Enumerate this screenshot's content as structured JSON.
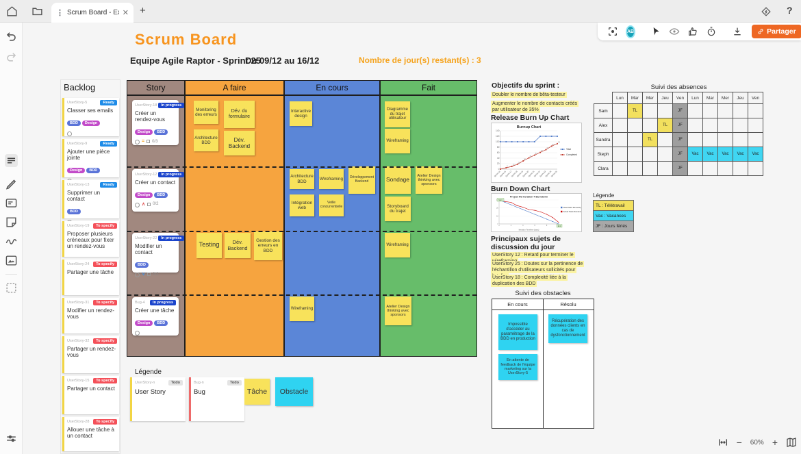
{
  "chrome": {
    "tab_title": "Scrum Board - Ex...",
    "zoom_level": "60%",
    "share_label": "Partager",
    "avatar_initials": "AB"
  },
  "board": {
    "title": "Scrum Board",
    "team": "Equipe Agile Raptor - Sprint 25",
    "dates": "Du 09/12 au 16/12",
    "days_remaining": "Nombre de jour(s) restant(s) : 3"
  },
  "backlog": {
    "title": "Backlog",
    "cards": [
      {
        "id": "UserStory-5",
        "status": "Ready",
        "title": "Classer ses emails",
        "tags": [
          "BDD",
          "Design"
        ]
      },
      {
        "id": "UserStory-9",
        "status": "Ready",
        "title": "Ajouter une pièce jointe",
        "tags": [
          "Design",
          "BDD"
        ]
      },
      {
        "id": "UserStory-13",
        "status": "Ready",
        "title": "Supprimer un contact",
        "tags": [
          "BDD"
        ]
      },
      {
        "id": "UserStory-19",
        "status": "To specify",
        "title": "Proposer plusieurs créneaux pour fixer un rendez-vous",
        "tags": []
      },
      {
        "id": "UserStory-24",
        "status": "To specify",
        "title": "Partager une tâche",
        "tags": []
      },
      {
        "id": "UserStory-31",
        "status": "To specify",
        "title": "Modifier un rendez-vous",
        "tags": []
      },
      {
        "id": "UserStory-32",
        "status": "To specify",
        "title": "Partager un rendez-vous",
        "tags": []
      },
      {
        "id": "UserStory-15",
        "status": "To specify",
        "title": "Partager un contact",
        "tags": []
      },
      {
        "id": "UserStory-28",
        "status": "To specify",
        "title": "Allouer une tâche à un contact",
        "tags": []
      }
    ]
  },
  "kanban": {
    "columns": [
      "Story",
      "A faire",
      "En cours",
      "Fait"
    ],
    "rows": [
      {
        "story": {
          "id": "UserStory-18",
          "status": "In progress",
          "title": "Créer un rendez-vous",
          "tags": [
            "Design",
            "BDD"
          ],
          "checklist": "0/3"
        },
        "a_faire": [
          "Monitoring des erreurs",
          "Dév. du formulaire",
          "Architecture BDD",
          "Dév. Backend"
        ],
        "en_cours": [
          "Interactive design"
        ],
        "fait": [
          "Diagramme du trajet utilisateur",
          "Wireframing"
        ]
      },
      {
        "story": {
          "id": "UserStory-12",
          "status": "In progress",
          "title": "Créer un contact",
          "tags": [
            "Design",
            "BDD"
          ],
          "checklist": "0/2"
        },
        "a_faire": [],
        "en_cours": [
          "Architecture BDD",
          "Wireframing",
          "Développement Backend",
          "Intégration web",
          "Veille concurrentielle"
        ],
        "fait": [
          "Sondage",
          "Atelier Design thinking avec sponsors",
          "Storyboard du trajet"
        ]
      },
      {
        "story": {
          "id": "UserStory-22",
          "status": "In progress",
          "title": "Modifier un contact",
          "tags": [
            "BDD"
          ],
          "checklist": "0/2"
        },
        "a_faire": [
          "Testing",
          "Dév. Backend",
          "Gestion des erreurs en BDD"
        ],
        "en_cours": [],
        "fait": [
          "Wireframing"
        ]
      },
      {
        "story": {
          "id": "Bug-4",
          "status": "In progress",
          "title": "Créer une tâche",
          "tags": [
            "Design",
            "BDD"
          ],
          "checklist": ""
        },
        "a_faire": [],
        "en_cours": [
          "Wireframing"
        ],
        "fait": [
          "Atelier Design thinking avec sponsors"
        ]
      }
    ]
  },
  "legend": {
    "title": "Légende",
    "user_story_card": {
      "id": "UserStory-n",
      "status": "Todo",
      "label": "User Story"
    },
    "bug_card": {
      "id": "Bug-n",
      "status": "Todo",
      "label": "Bug"
    },
    "task_label": "Tâche",
    "obstacle_label": "Obstacle"
  },
  "sprint_panel": {
    "objectives_title": "Objectifs du sprint :",
    "objectives": [
      "Doubler le nombre de bêta-testeur",
      "Augmenter le nombre de contacts créés par utilisateur de 35%"
    ],
    "burnup_title": "Release Burn Up Chart",
    "burndown_title": "Burn Down Chart",
    "topics_title": "Principaux sujets de discussion du jour",
    "topics": [
      "UserStory 12 : Retard pour terminer le wireframing",
      "UserStory 25 : Doutes sur la pertinence de l'échantillon d'utilisateurs sollicités pour l'atelier",
      "UserStory 18 : Complexité liée à la duplication des BDD"
    ]
  },
  "obstacles": {
    "title": "Suivi des obstacles",
    "columns": [
      "En cours",
      "Résolu"
    ],
    "en_cours": [
      "Impossible d'accéder au paramétrage de la BDD en production",
      "En attente de feedback de l'équipe marketing sur la UserStory-5"
    ],
    "resolu": [
      "Récupération des données clients en cas de dysfonctionnement"
    ]
  },
  "absences": {
    "title": "Suivi des absences",
    "days": [
      "Lun",
      "Mar",
      "Mer",
      "Jeu",
      "Ven",
      "Lun",
      "Mar",
      "Mer",
      "Jeu",
      "Ven"
    ],
    "people": [
      "Sam",
      "Alex",
      "Sandra",
      "Steph",
      "Clara"
    ],
    "grid": [
      [
        "",
        "TL",
        "",
        "",
        "JF",
        "",
        "",
        "",
        "",
        ""
      ],
      [
        "",
        "",
        "",
        "TL",
        "JF",
        "",
        "",
        "",
        "",
        ""
      ],
      [
        "",
        "",
        "TL",
        "",
        "JF",
        "",
        "",
        "",
        "",
        ""
      ],
      [
        "",
        "",
        "",
        "",
        "JF",
        "Vac",
        "Vac",
        "Vac",
        "Vac",
        "Vac"
      ],
      [
        "",
        "",
        "",
        "",
        "JF",
        "",
        "",
        "",
        "",
        ""
      ]
    ],
    "legend": {
      "title": "Légende",
      "items": [
        "TL : Télétravail",
        "Vac : Vacances",
        "JF : Jours fériés"
      ]
    }
  },
  "chart_data": [
    {
      "name": "release-burnup",
      "type": "line",
      "title": "Burnup Chart",
      "categories": [
        "Sprint 15",
        "Sprint 16",
        "Sprint 17",
        "Sprint 18",
        "Sprint 19",
        "Sprint 20",
        "Sprint 21",
        "Sprint 22",
        "Sprint 23",
        "Sprint 24",
        "Sprint 25"
      ],
      "series": [
        {
          "name": "Total",
          "color": "#4472c4",
          "values": [
            100,
            100,
            100,
            100,
            100,
            100,
            100,
            120,
            120,
            120,
            120
          ]
        },
        {
          "name": "Completed",
          "color": "#c0392b",
          "values": [
            0,
            5,
            10,
            18,
            30,
            41,
            51,
            61,
            71,
            84,
            93
          ]
        }
      ],
      "ylim": [
        0,
        140
      ],
      "ytick_step": 20,
      "legend_position": "right",
      "grid": true
    },
    {
      "name": "burndown",
      "type": "line",
      "title": "Project NG Iteration 4 Burndown",
      "xlabel": "Iteration Timeline (days)",
      "x": [
        0,
        1,
        2,
        3,
        4,
        5,
        6,
        7,
        8,
        9,
        10
      ],
      "series": [
        {
          "name": "Ideal Tasks Remaining",
          "color": "#4472c4",
          "values": [
            30,
            27,
            24,
            21,
            18,
            15,
            12,
            9,
            6,
            3,
            0
          ]
        },
        {
          "name": "Actual Tasks Remaining",
          "color": "#cc0000",
          "values": [
            30,
            28,
            27,
            23,
            21,
            18,
            17,
            15,
            12,
            8,
            2
          ]
        }
      ],
      "ylim": [
        0,
        30
      ],
      "annotations": [
        "Start",
        "End"
      ],
      "legend_position": "right",
      "grid": true
    }
  ],
  "colors": {
    "accent_orange": "#f7941e",
    "remaining_orange": "#f5a31d",
    "share_button": "#ee6723",
    "story_column": "#a1887f",
    "todo_column": "#f6a43f",
    "inprogress_column": "#5b86d7",
    "done_column": "#67bd6a",
    "sticky_yellow": "#f8e25b",
    "sticky_cyan": "#2fd3f1",
    "badge_ready": "#1f8ce8",
    "badge_in_progress": "#1b45cc",
    "badge_to_specify": "#f45059",
    "tag_bdd": "#5a73d8",
    "tag_design": "#c24bc9",
    "highlight_yellow": "#fbf3a2",
    "absence_tl": "#f2e05e",
    "absence_vac": "#40d6f2",
    "absence_jf": "#9e9e9e"
  }
}
